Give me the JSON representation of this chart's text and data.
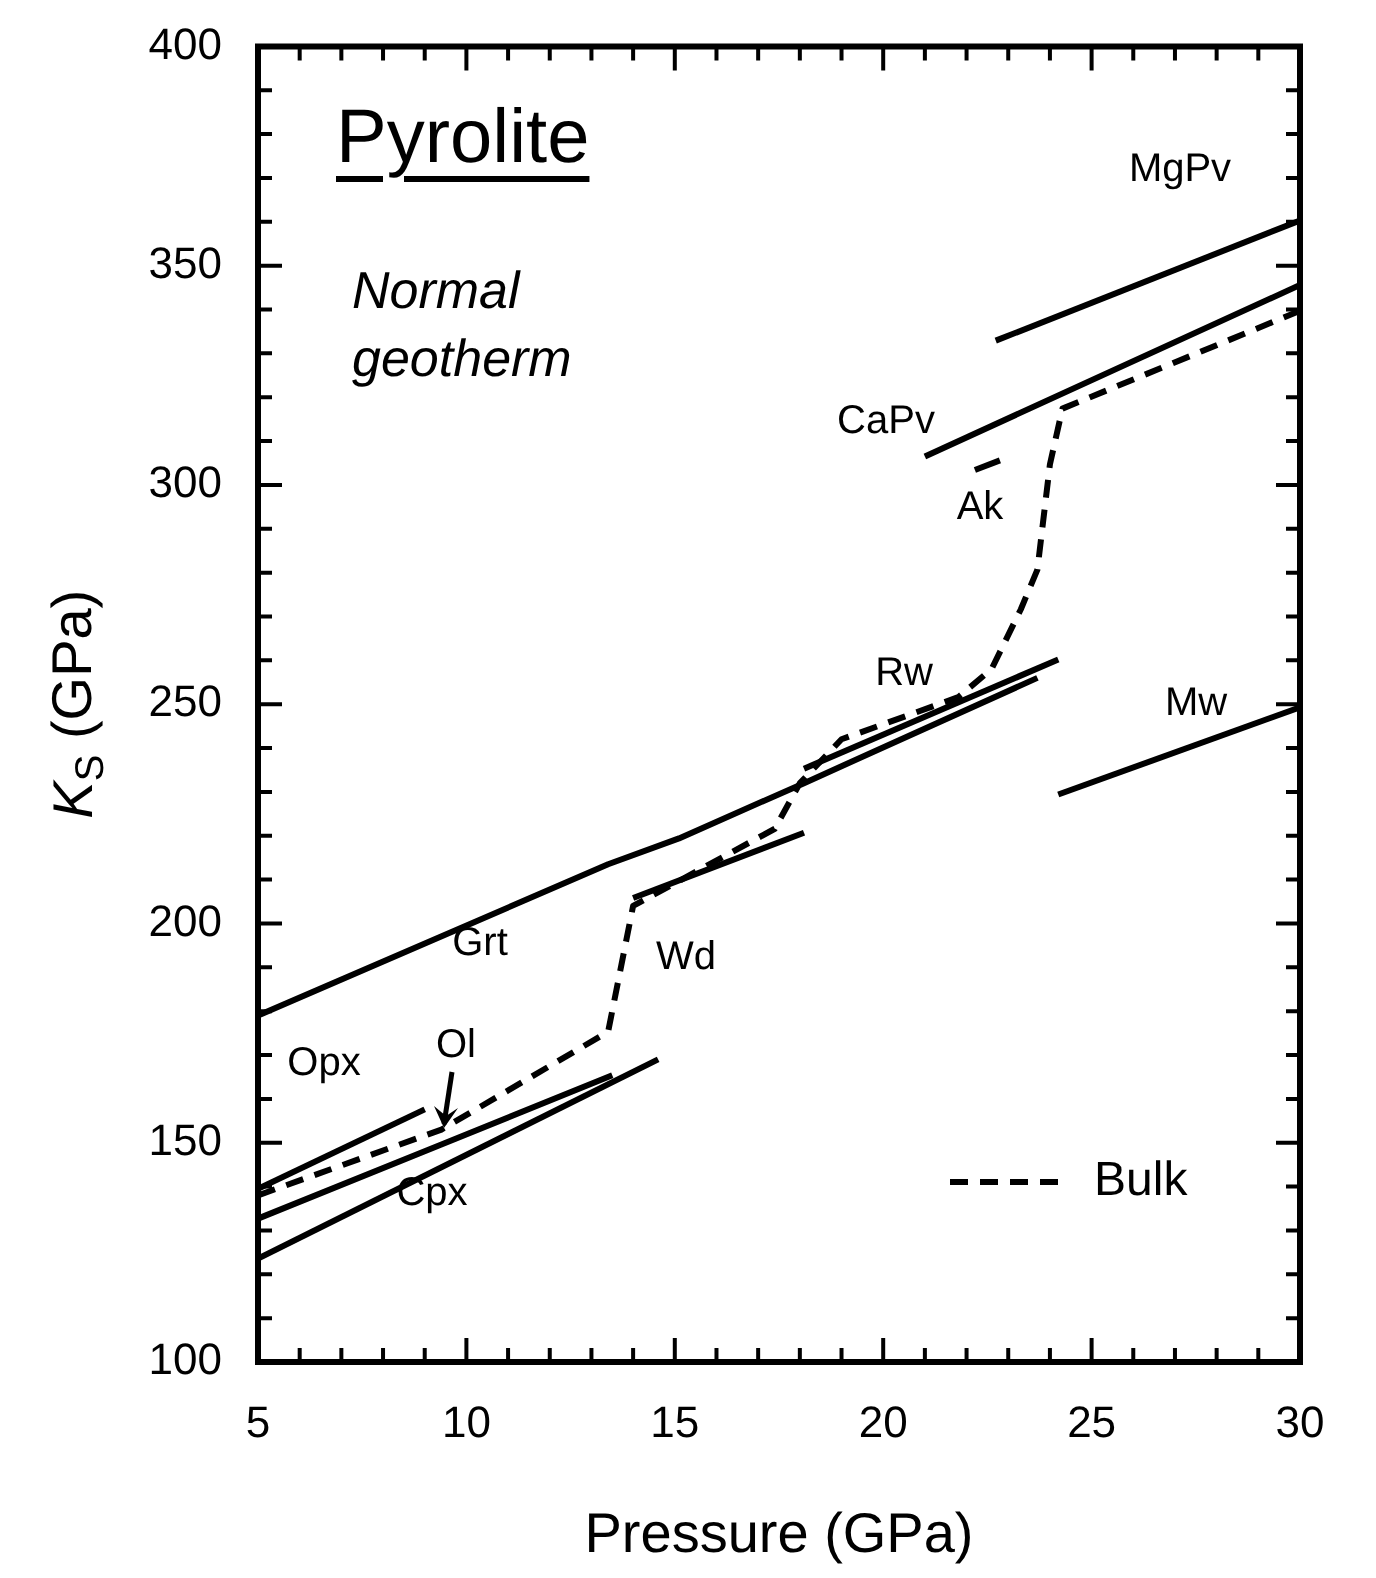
{
  "chart_data": {
    "type": "line",
    "title": "Pyrolite",
    "subtitle": "Normal geotherm",
    "xlabel": "Pressure (GPa)",
    "ylabel": "K$_{S}$ (GPa)",
    "xlim": [
      5,
      30
    ],
    "ylim": [
      100,
      400
    ],
    "xticks": [
      5,
      {
        "value": 6,
        "label": null
      },
      {
        "value": 7,
        "label": null
      },
      {
        "value": 8,
        "label": null
      },
      {
        "value": 9,
        "label": null
      },
      10,
      {
        "value": 11,
        "label": null
      },
      {
        "value": 12,
        "label": null
      },
      {
        "value": 13,
        "label": null
      },
      {
        "value": 14,
        "label": null
      },
      15,
      {
        "value": 16,
        "label": null
      },
      {
        "value": 17,
        "label": null
      },
      {
        "value": 18,
        "label": null
      },
      {
        "value": 19,
        "label": null
      },
      20,
      {
        "value": 21,
        "label": null
      },
      {
        "value": 22,
        "label": null
      },
      {
        "value": 23,
        "label": null
      },
      {
        "value": 24,
        "label": null
      },
      25,
      {
        "value": 26,
        "label": null
      },
      {
        "value": 27,
        "label": null
      },
      {
        "value": 28,
        "label": null
      },
      {
        "value": 29,
        "label": null
      },
      30
    ],
    "yticks": [
      100,
      {
        "value": 110,
        "label": null
      },
      {
        "value": 120,
        "label": null
      },
      {
        "value": 130,
        "label": null
      },
      {
        "value": 140,
        "label": null
      },
      150,
      {
        "value": 160,
        "label": null
      },
      {
        "value": 170,
        "label": null
      },
      {
        "value": 180,
        "label": null
      },
      {
        "value": 190,
        "label": null
      },
      200,
      {
        "value": 210,
        "label": null
      },
      {
        "value": 220,
        "label": null
      },
      {
        "value": 230,
        "label": null
      },
      {
        "value": 240,
        "label": null
      },
      250,
      {
        "value": 260,
        "label": null
      },
      {
        "value": 270,
        "label": null
      },
      {
        "value": 280,
        "label": null
      },
      {
        "value": 290,
        "label": null
      },
      300,
      {
        "value": 310,
        "label": null
      },
      {
        "value": 320,
        "label": null
      },
      {
        "value": 330,
        "label": null
      },
      {
        "value": 340,
        "label": null
      },
      350,
      {
        "value": 360,
        "label": null
      },
      {
        "value": 370,
        "label": null
      },
      {
        "value": 380,
        "label": null
      },
      {
        "value": 390,
        "label": null
      },
      400
    ],
    "grid": false,
    "legend": "bottom right",
    "marker": "none",
    "series": [
      {
        "color": "#000000",
        "x": [
          5,
          13.4,
          15.1,
          18.1,
          23.7
        ],
        "values": [
          179,
          213.5,
          219.4,
          232,
          256
        ]
      },
      {
        "color": "#000000",
        "x": [
          14.0,
          18.1
        ],
        "values": [
          205.8,
          220.7
        ]
      },
      {
        "color": "#000000",
        "x": [
          18.1,
          24.2
        ],
        "values": [
          235.3,
          260.2
        ]
      },
      {
        "color": "#000000",
        "x": [
          5,
          9.0
        ],
        "values": [
          139.5,
          157.6
        ]
      },
      {
        "color": "#000000",
        "x": [
          5,
          9.4,
          13.5
        ],
        "values": [
          132.7,
          149.6,
          165.4
        ]
      },
      {
        "color": "#000000",
        "x": [
          5,
          14.6
        ],
        "values": [
          123.6,
          169
        ]
      },
      {
        "color": "#000000",
        "x": [
          21.0,
          30
        ],
        "values": [
          306.5,
          345.6
        ]
      },
      {
        "color": "#000000",
        "x": [
          22.2,
          22.8
        ],
        "values": [
          303.4,
          305.6
        ]
      },
      {
        "color": "#000000",
        "x": [
          22.7,
          30
        ],
        "values": [
          332.9,
          360.3
        ]
      },
      {
        "color": "#000000",
        "x": [
          24.2,
          30
        ],
        "values": [
          229.4,
          249.3
        ]
      },
      {
        "name": "Bulk",
        "color": "#000000",
        "line_style": "dashed",
        "x": [
          5,
          9.4,
          13.4,
          14.0,
          17.4,
          18.0,
          19.0,
          21.8,
          22.6,
          23.3,
          23.7,
          24.0,
          24.3,
          30
        ],
        "values": [
          138,
          153,
          175.3,
          204,
          221.6,
          232,
          242,
          251.6,
          258,
          271.6,
          280.7,
          304.7,
          317.4,
          339.7
        ]
      }
    ],
    "annotations": [
      "Grt",
      "Wd",
      "Opx",
      "Ol",
      "Cpx",
      "Rw",
      "CaPv",
      "Ak",
      "MgPv",
      "Mw"
    ]
  }
}
